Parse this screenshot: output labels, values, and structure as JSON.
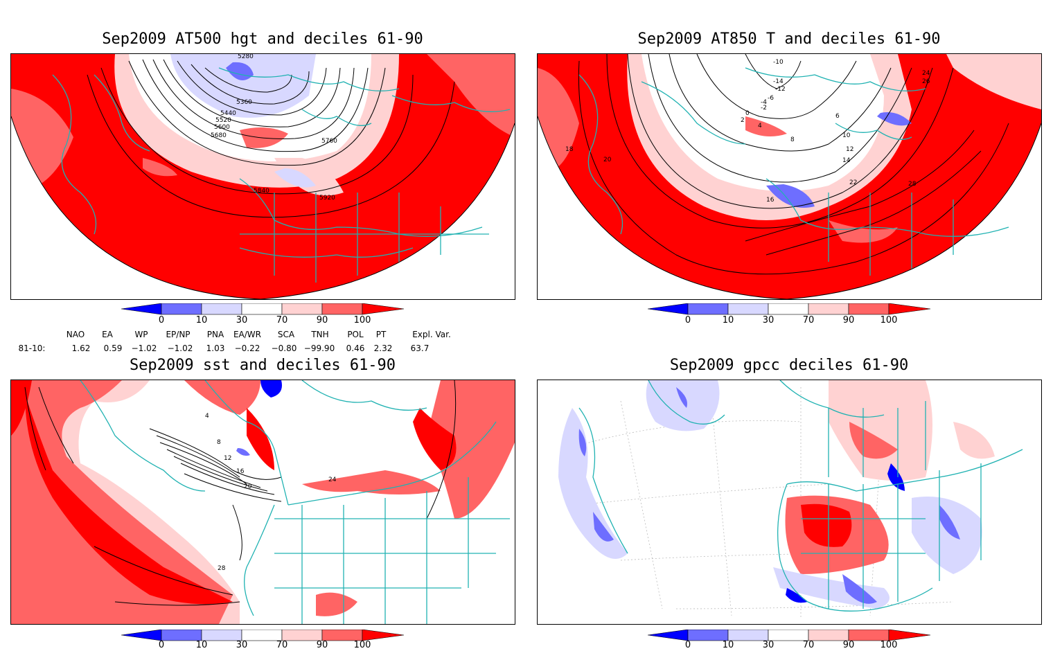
{
  "panels": [
    {
      "id": "hgt",
      "title": "Sep2009 AT500 hgt and deciles 61-90",
      "contour_labels": [
        "5280",
        "5360",
        "5440",
        "5520",
        "5600",
        "5680",
        "5760",
        "5840",
        "5920"
      ]
    },
    {
      "id": "t850",
      "title": "Sep2009 AT850 T and deciles 61-90",
      "contour_labels": [
        "-14",
        "-12",
        "-10",
        "-6",
        "-4",
        "-2",
        "0",
        "2",
        "4",
        "6",
        "8",
        "10",
        "12",
        "14",
        "16",
        "18",
        "20",
        "22",
        "24",
        "26",
        "28"
      ]
    },
    {
      "id": "sst",
      "title": "Sep2009 sst and deciles 61-90",
      "contour_labels": [
        "4",
        "8",
        "12",
        "16",
        "20",
        "24",
        "28"
      ]
    },
    {
      "id": "gpcc",
      "title": "Sep2009 gpcc deciles 61-90",
      "contour_labels": []
    }
  ],
  "colorbar": {
    "tick_labels": [
      "0",
      "10",
      "30",
      "70",
      "90",
      "100"
    ],
    "colors": [
      "#0000ff",
      "#6e6eff",
      "#d8d8ff",
      "#ffffff",
      "#ffd2d2",
      "#ff6464",
      "#ff0000"
    ]
  },
  "indices": {
    "row_label": "81-10:",
    "headers": [
      "NAO",
      "EA",
      "WP",
      "EP/NP",
      "PNA",
      "EA/WR",
      "SCA",
      "TNH",
      "POL",
      "PT",
      "Expl. Var."
    ],
    "values": [
      "1.62",
      "0.59",
      "−1.02",
      "−1.02",
      "1.03",
      "−0.22",
      "−0.80",
      "−99.90",
      "0.46",
      "2.32",
      "63.7"
    ]
  },
  "colors": {
    "coast": "#20b2b2",
    "strong_red": "#ff0000",
    "mid_red": "#ff6464",
    "light_red": "#ffd2d2",
    "light_blue": "#d8d8ff",
    "mid_blue": "#6e6eff",
    "strong_blue": "#0000ff"
  }
}
